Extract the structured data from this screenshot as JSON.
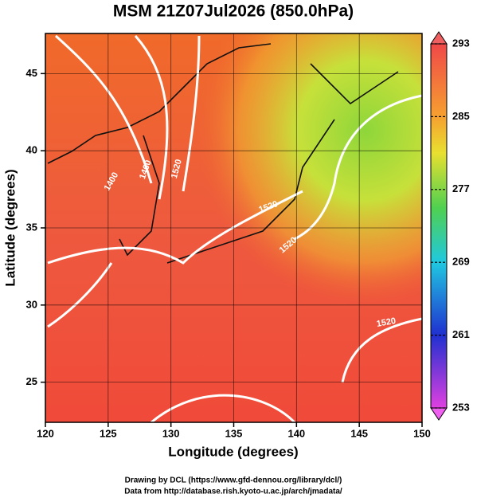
{
  "title": "MSM 21Z07Jul2026 (850.0hPa)",
  "x_axis": {
    "label": "Longitude (degrees)",
    "lim": [
      120,
      150
    ],
    "ticks": [
      120,
      125,
      130,
      135,
      140,
      145,
      150
    ]
  },
  "y_axis": {
    "label": "Latitude  (degrees)",
    "lim": [
      22.4,
      47.6
    ],
    "ticks": [
      25,
      30,
      35,
      40,
      45
    ]
  },
  "colorbar": {
    "lim": [
      253,
      293
    ],
    "ticks": [
      253,
      261,
      269,
      277,
      285,
      293
    ]
  },
  "contour_labels": [
    "1400",
    "1460",
    "1520",
    "1520",
    "1520",
    "1520"
  ],
  "footer": [
    "Drawing by DCL (https://www.gfd-dennou.org/library/dcl/)",
    "Data from http://database.rish.kyoto-u.ac.jp/arch/jmadata/"
  ]
}
